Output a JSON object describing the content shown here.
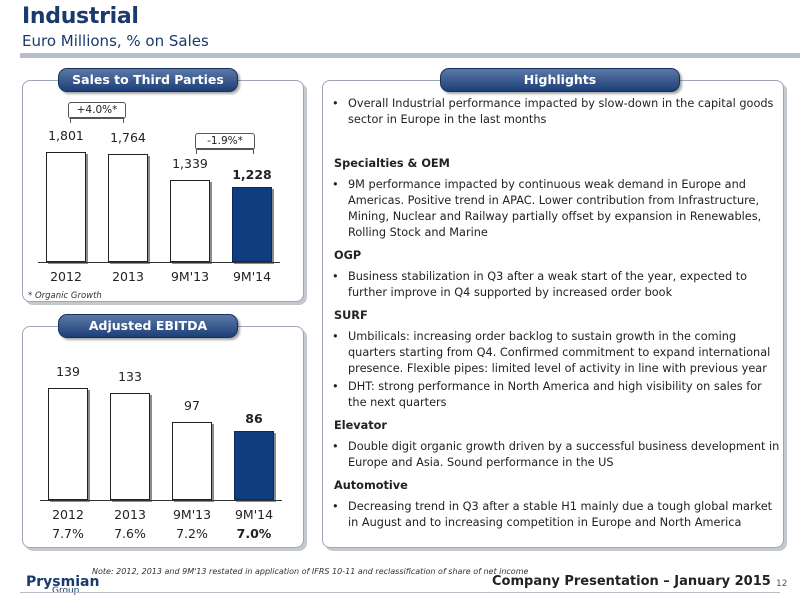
{
  "header": {
    "title": "Industrial",
    "subtitle": "Euro Millions, % on Sales"
  },
  "sales_panel": {
    "label": "Sales to Third Parties",
    "growth_labels": [
      "+4.0%*",
      "-1.9%*"
    ],
    "organic_note": "* Organic Growth"
  },
  "ebitda_panel": {
    "label": "Adjusted EBITDA"
  },
  "chart_data": [
    {
      "type": "bar",
      "title": "Sales to Third Parties",
      "categories": [
        "2012",
        "2013",
        "9M'13",
        "9M'14"
      ],
      "values": [
        1801,
        1764,
        1339,
        1228
      ],
      "value_labels": [
        "1,801",
        "1,764",
        "1,339",
        "1,228"
      ],
      "highlight": [
        false,
        false,
        false,
        true
      ],
      "annotations": [
        "+4.0%*",
        "-1.9%*"
      ]
    },
    {
      "type": "bar",
      "title": "Adjusted EBITDA",
      "categories": [
        "2012",
        "2013",
        "9M'13",
        "9M'14"
      ],
      "values": [
        139,
        133,
        97,
        86
      ],
      "value_labels": [
        "139",
        "133",
        "97",
        "86"
      ],
      "highlight": [
        false,
        false,
        false,
        true
      ],
      "margins": [
        "7.7%",
        "7.6%",
        "7.2%",
        "7.0%"
      ]
    }
  ],
  "highlights": {
    "label": "Highlights",
    "intro": "Overall Industrial performance impacted by slow-down  in the capital goods sector in Europe in the last months",
    "sections": [
      {
        "heading": "Specialties & OEM",
        "bullets": [
          "9M performance impacted by continuous weak demand in Europe and Americas. Positive trend in APAC. Lower contribution from Infrastructure, Mining, Nuclear and Railway partially offset by expansion in Renewables, Rolling Stock and Marine"
        ]
      },
      {
        "heading": "OGP",
        "bullets": [
          "Business stabilization in Q3 after a weak start of the year, expected to further improve in Q4  supported by increased order book"
        ]
      },
      {
        "heading": "SURF",
        "bullets": [
          "Umbilicals: increasing order backlog  to sustain growth in the coming quarters starting from Q4. Confirmed commitment to expand international presence. Flexible pipes: limited level of activity in line with previous year",
          "DHT: strong performance in North America and high visibility on sales for the next quarters"
        ]
      },
      {
        "heading": "Elevator",
        "bullets": [
          "Double digit organic growth driven by a successful business development in Europe and Asia. Sound performance in the US"
        ]
      },
      {
        "heading": "Automotive",
        "bullets": [
          "Decreasing trend in Q3 after a stable H1 mainly due a tough global market in August and to increasing competition in Europe and North America"
        ]
      }
    ]
  },
  "footer": {
    "note": "Note: 2012, 2013 and 9M'13 restated in application of IFRS 10-11 and reclassification of share of net income",
    "brand": "Prysmian",
    "brand_sub": "Group",
    "presentation": "Company Presentation – January 2015",
    "page": "12"
  },
  "colors": {
    "accent": "#1a3a6e",
    "highlight_bar": "#103d80"
  }
}
